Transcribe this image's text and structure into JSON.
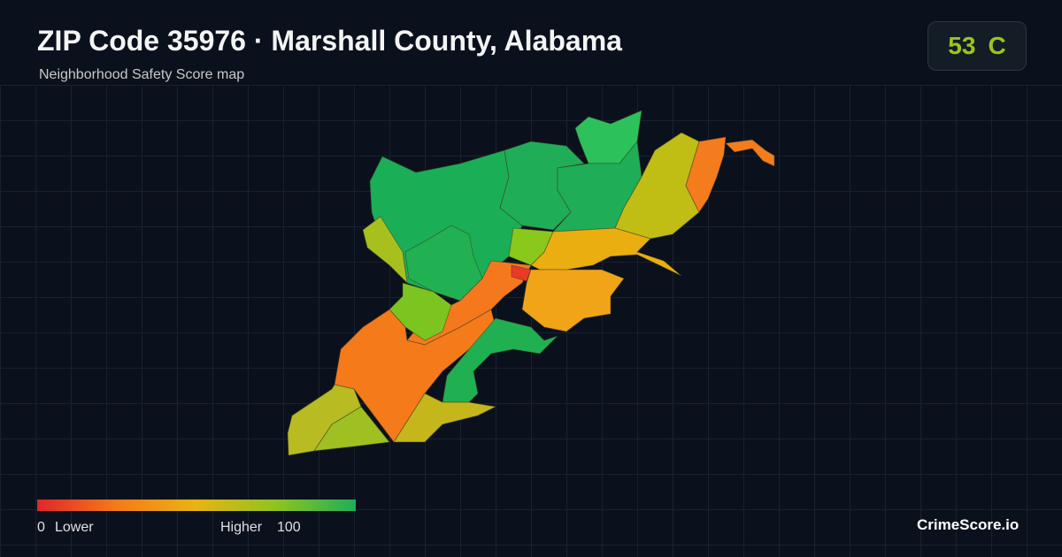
{
  "header": {
    "title": "ZIP Code 35976 · Marshall County, Alabama",
    "subtitle": "Neighborhood Safety Score map"
  },
  "score": {
    "value": 53,
    "grade": "C"
  },
  "legend": {
    "min": 0,
    "min_label": "Lower",
    "max_label": "Higher",
    "max": 100
  },
  "brand": "CrimeScore.io"
}
